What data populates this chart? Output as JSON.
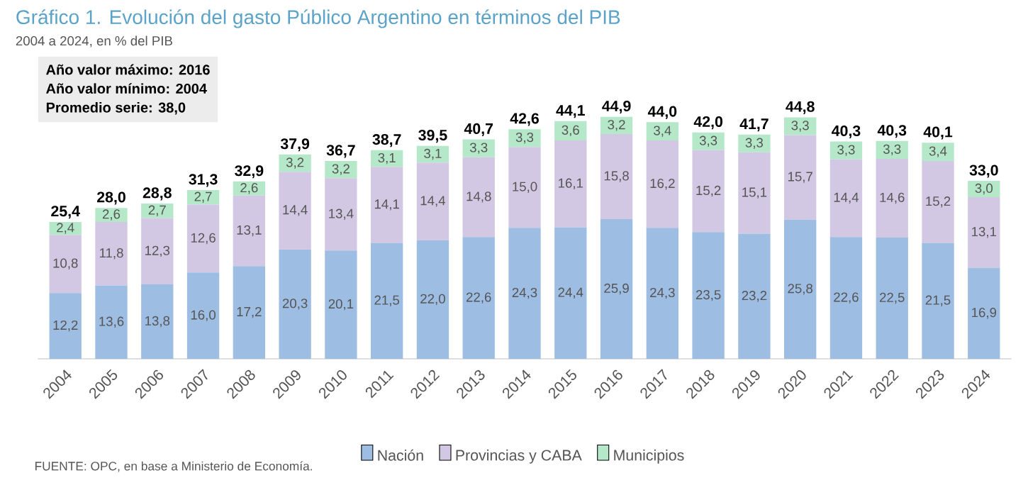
{
  "chart_data": {
    "type": "bar",
    "stacked": true,
    "title": "Gráfico 1. Evolución del gasto Público Argentino en términos del PIB",
    "subtitle": "2004 a 2024, en % del PIB",
    "categories": [
      "2004",
      "2005",
      "2006",
      "2007",
      "2008",
      "2009",
      "2010",
      "2011",
      "2012",
      "2013",
      "2014",
      "2015",
      "2016",
      "2017",
      "2018",
      "2019",
      "2020",
      "2021",
      "2022",
      "2023",
      "2024"
    ],
    "series": [
      {
        "name": "Nación",
        "color": "#9dbde3",
        "values": [
          12.2,
          13.6,
          13.8,
          16.0,
          17.2,
          20.3,
          20.1,
          21.5,
          22.0,
          22.6,
          24.3,
          24.4,
          25.9,
          24.3,
          23.5,
          23.2,
          25.8,
          22.6,
          22.5,
          21.5,
          16.9
        ],
        "value_labels": [
          "12,2",
          "13,6",
          "13,8",
          "16,0",
          "17,2",
          "20,3",
          "20,1",
          "21,5",
          "22,0",
          "22,6",
          "24,3",
          "24,4",
          "25,9",
          "24,3",
          "23,5",
          "23,2",
          "25,8",
          "22,6",
          "22,5",
          "21,5",
          "16,9"
        ]
      },
      {
        "name": "Provincias y CABA",
        "color": "#d3c8e3",
        "values": [
          10.8,
          11.8,
          12.3,
          12.6,
          13.1,
          14.4,
          13.4,
          14.1,
          14.4,
          14.8,
          15.0,
          16.1,
          15.8,
          16.2,
          15.2,
          15.1,
          15.7,
          14.4,
          14.6,
          15.2,
          13.1
        ],
        "value_labels": [
          "10,8",
          "11,8",
          "12,3",
          "12,6",
          "13,1",
          "14,4",
          "13,4",
          "14,1",
          "14,4",
          "14,8",
          "15,0",
          "16,1",
          "15,8",
          "16,2",
          "15,2",
          "15,1",
          "15,7",
          "14,4",
          "14,6",
          "15,2",
          "13,1"
        ]
      },
      {
        "name": "Municipios",
        "color": "#b5e8c9",
        "values": [
          2.4,
          2.6,
          2.7,
          2.7,
          2.6,
          3.2,
          3.2,
          3.1,
          3.1,
          3.3,
          3.3,
          3.6,
          3.2,
          3.4,
          3.3,
          3.3,
          3.3,
          3.3,
          3.3,
          3.4,
          3.0
        ],
        "value_labels": [
          "2,4",
          "2,6",
          "2,7",
          "2,7",
          "2,6",
          "3,2",
          "3,2",
          "3,1",
          "3,1",
          "3,3",
          "3,3",
          "3,6",
          "3,2",
          "3,4",
          "3,3",
          "3,3",
          "3,3",
          "3,3",
          "3,3",
          "3,4",
          "3,0"
        ]
      }
    ],
    "totals": [
      "25,4",
      "28,0",
      "28,8",
      "31,3",
      "32,9",
      "37,9",
      "36,7",
      "38,7",
      "39,5",
      "40,7",
      "42,6",
      "44,1",
      "44,9",
      "44,0",
      "42,0",
      "41,7",
      "44,8",
      "40,3",
      "40,3",
      "40,1",
      "33,0"
    ],
    "annotations": [
      "Año valor máximo: 2016",
      "Año valor mínimo: 2004",
      "Promedio serie: 38,0",
      "FUENTE: OPC, en base a Ministerio de Economía."
    ],
    "legend": "bottom"
  }
}
